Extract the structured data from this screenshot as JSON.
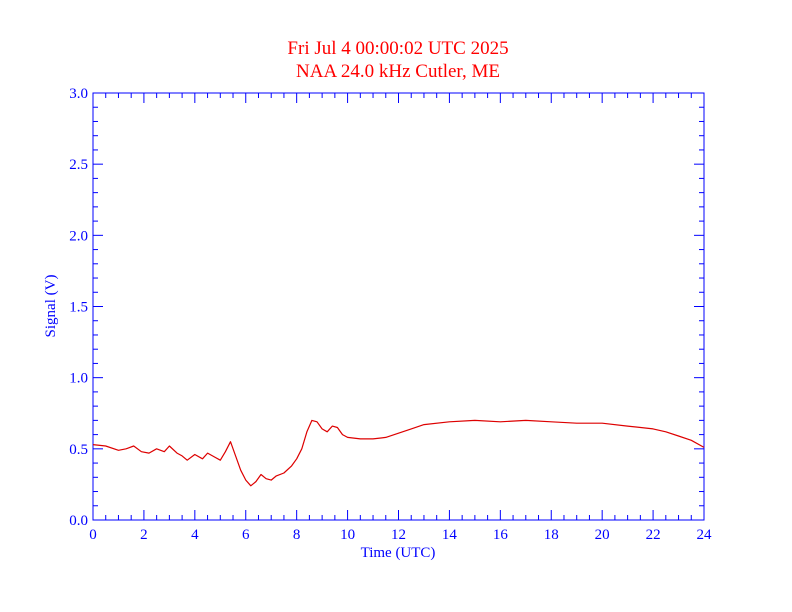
{
  "colors": {
    "title": "#ff0000",
    "axis": "#0000ff",
    "series": "#dd0000",
    "background": "#ffffff"
  },
  "chart_data": {
    "type": "line",
    "title": "Fri Jul 4 00:00:02 UTC 2025",
    "subtitle": "NAA 24.0 kHz Cutler, ME",
    "xlabel": "Time (UTC)",
    "ylabel": "Signal (V)",
    "xlim": [
      0,
      24
    ],
    "ylim": [
      0,
      3
    ],
    "x_ticks": [
      "0",
      "2",
      "4",
      "6",
      "8",
      "10",
      "12",
      "14",
      "16",
      "18",
      "20",
      "22",
      "24"
    ],
    "y_ticks": [
      "0.0",
      "0.5",
      "1.0",
      "1.5",
      "2.0",
      "2.5",
      "3.0"
    ],
    "grid": false,
    "series": [
      {
        "x": [
          0,
          0.5,
          1.0,
          1.3,
          1.6,
          1.9,
          2.2,
          2.5,
          2.8,
          3.0,
          3.3,
          3.5,
          3.7,
          4.0,
          4.3,
          4.5,
          4.8,
          5.0,
          5.2,
          5.4,
          5.6,
          5.8,
          6.0,
          6.2,
          6.4,
          6.6,
          6.8,
          7.0,
          7.2,
          7.5,
          7.8,
          8.0,
          8.2,
          8.4,
          8.6,
          8.8,
          9.0,
          9.2,
          9.4,
          9.6,
          9.8,
          10.0,
          10.5,
          11.0,
          11.5,
          12.0,
          12.5,
          13.0,
          14.0,
          15.0,
          16.0,
          17.0,
          18.0,
          19.0,
          20.0,
          21.0,
          22.0,
          22.5,
          23.0,
          23.5,
          24.0
        ],
        "y": [
          0.53,
          0.52,
          0.49,
          0.5,
          0.52,
          0.48,
          0.47,
          0.5,
          0.48,
          0.52,
          0.47,
          0.45,
          0.42,
          0.46,
          0.43,
          0.47,
          0.44,
          0.42,
          0.48,
          0.55,
          0.45,
          0.35,
          0.28,
          0.24,
          0.27,
          0.32,
          0.29,
          0.28,
          0.31,
          0.33,
          0.38,
          0.43,
          0.5,
          0.62,
          0.7,
          0.69,
          0.64,
          0.62,
          0.66,
          0.65,
          0.6,
          0.58,
          0.57,
          0.57,
          0.58,
          0.61,
          0.64,
          0.67,
          0.69,
          0.7,
          0.69,
          0.7,
          0.69,
          0.68,
          0.68,
          0.66,
          0.64,
          0.62,
          0.59,
          0.56,
          0.51
        ]
      }
    ]
  }
}
